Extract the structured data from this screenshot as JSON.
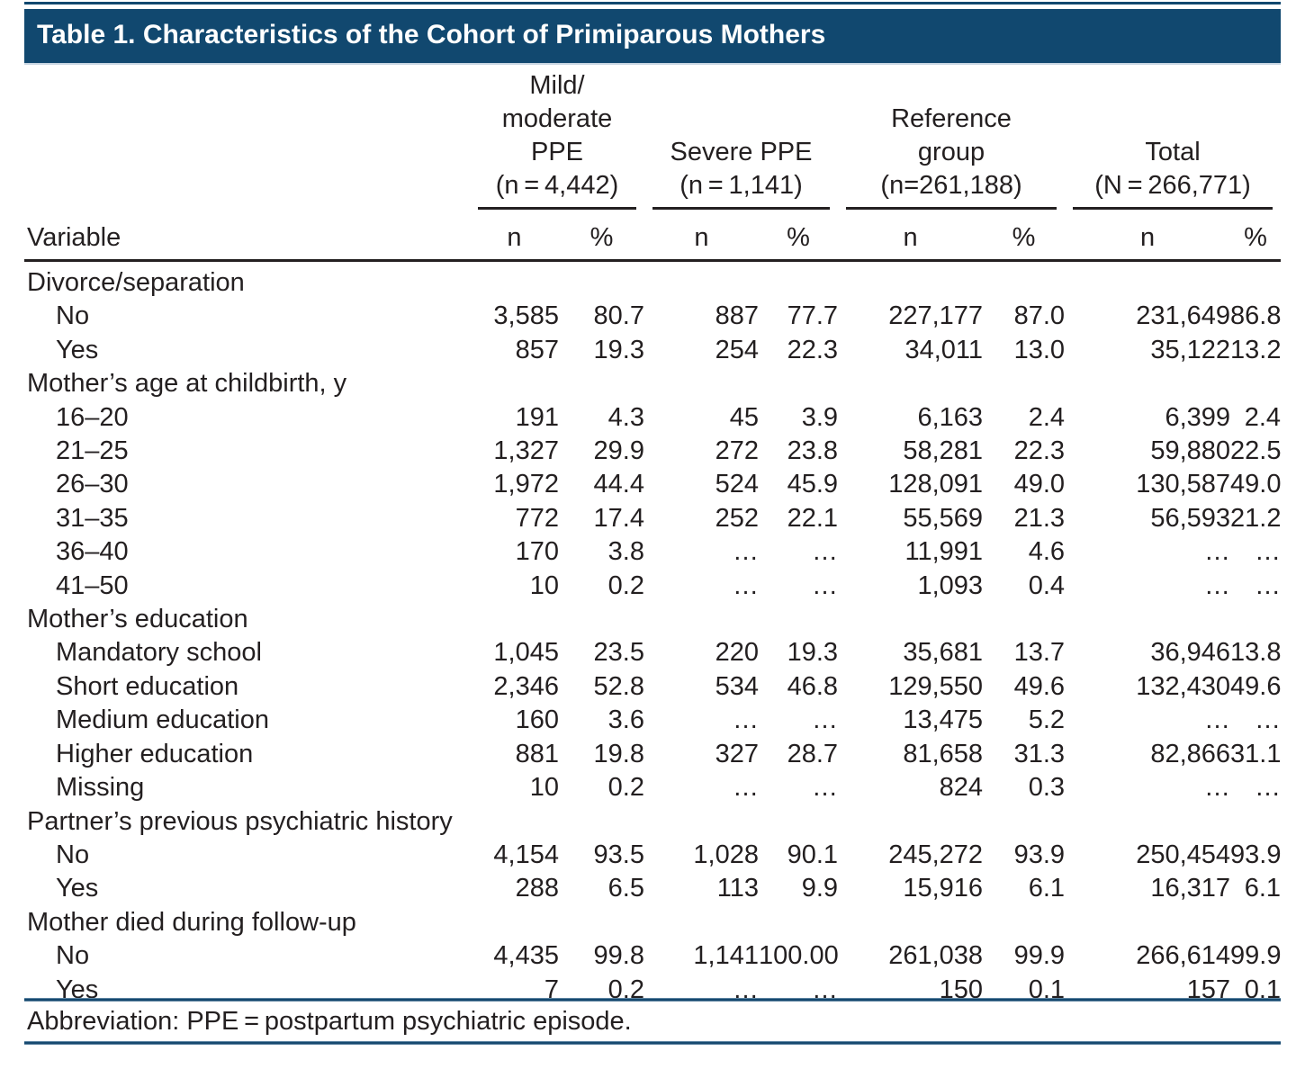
{
  "title": "Table 1. Characteristics of the Cohort of Primiparous Mothers",
  "table": {
    "variable_header": "Variable",
    "col_subheaders": [
      "n",
      "%"
    ],
    "groups": [
      {
        "name": "mild-moderate-ppe",
        "lines": [
          "Mild/",
          "moderate",
          "PPE",
          "(n = 4,442)"
        ]
      },
      {
        "name": "severe-ppe",
        "lines": [
          "Severe PPE",
          "(n = 1,141)"
        ]
      },
      {
        "name": "reference-group",
        "lines": [
          "Reference",
          "group",
          "(n=261,188)"
        ]
      },
      {
        "name": "total",
        "lines": [
          "Total",
          "(N = 266,771)"
        ]
      }
    ],
    "rows": [
      {
        "type": "section",
        "label": "Divorce/separation",
        "cells": []
      },
      {
        "type": "data",
        "label": "No",
        "cells": [
          "3,585",
          "80.7",
          "887",
          "77.7",
          "227,177",
          "87.0",
          "231,649",
          "86.8"
        ]
      },
      {
        "type": "data",
        "label": "Yes",
        "cells": [
          "857",
          "19.3",
          "254",
          "22.3",
          "34,011",
          "13.0",
          "35,122",
          "13.2"
        ]
      },
      {
        "type": "section",
        "label": "Mother’s age at childbirth, y",
        "cells": []
      },
      {
        "type": "data",
        "label": "16–20",
        "cells": [
          "191",
          "4.3",
          "45",
          "3.9",
          "6,163",
          "2.4",
          "6,399",
          "2.4"
        ]
      },
      {
        "type": "data",
        "label": "21–25",
        "cells": [
          "1,327",
          "29.9",
          "272",
          "23.8",
          "58,281",
          "22.3",
          "59,880",
          "22.5"
        ]
      },
      {
        "type": "data",
        "label": "26–30",
        "cells": [
          "1,972",
          "44.4",
          "524",
          "45.9",
          "128,091",
          "49.0",
          "130,587",
          "49.0"
        ]
      },
      {
        "type": "data",
        "label": "31–35",
        "cells": [
          "772",
          "17.4",
          "252",
          "22.1",
          "55,569",
          "21.3",
          "56,593",
          "21.2"
        ]
      },
      {
        "type": "data",
        "label": "36–40",
        "cells": [
          "170",
          "3.8",
          "…",
          "…",
          "11,991",
          "4.6",
          "…",
          "…"
        ]
      },
      {
        "type": "data",
        "label": "41–50",
        "cells": [
          "10",
          "0.2",
          "…",
          "…",
          "1,093",
          "0.4",
          "…",
          "…"
        ]
      },
      {
        "type": "section",
        "label": "Mother’s education",
        "cells": []
      },
      {
        "type": "data",
        "label": "Mandatory school",
        "cells": [
          "1,045",
          "23.5",
          "220",
          "19.3",
          "35,681",
          "13.7",
          "36,946",
          "13.8"
        ]
      },
      {
        "type": "data",
        "label": "Short education",
        "cells": [
          "2,346",
          "52.8",
          "534",
          "46.8",
          "129,550",
          "49.6",
          "132,430",
          "49.6"
        ]
      },
      {
        "type": "data",
        "label": "Medium education",
        "cells": [
          "160",
          "3.6",
          "…",
          "…",
          "13,475",
          "5.2",
          "…",
          "…"
        ]
      },
      {
        "type": "data",
        "label": "Higher education",
        "cells": [
          "881",
          "19.8",
          "327",
          "28.7",
          "81,658",
          "31.3",
          "82,866",
          "31.1"
        ]
      },
      {
        "type": "data",
        "label": "Missing",
        "cells": [
          "10",
          "0.2",
          "…",
          "…",
          "824",
          "0.3",
          "…",
          "…"
        ]
      },
      {
        "type": "section",
        "label": "Partner’s previous psychiatric history",
        "cells": []
      },
      {
        "type": "data",
        "label": "No",
        "cells": [
          "4,154",
          "93.5",
          "1,028",
          "90.1",
          "245,272",
          "93.9",
          "250,454",
          "93.9"
        ]
      },
      {
        "type": "data",
        "label": "Yes",
        "cells": [
          "288",
          "6.5",
          "113",
          "9.9",
          "15,916",
          "6.1",
          "16,317",
          "6.1"
        ]
      },
      {
        "type": "section",
        "label": "Mother died during follow-up",
        "cells": []
      },
      {
        "type": "data",
        "label": "No",
        "cells": [
          "4,435",
          "99.8",
          "1,141",
          "100.00",
          "261,038",
          "99.9",
          "266,614",
          "99.9"
        ]
      },
      {
        "type": "data",
        "label": "Yes",
        "cells": [
          "7",
          "0.2",
          "…",
          "…",
          "150",
          "0.1",
          "157",
          "0.1"
        ]
      }
    ]
  },
  "footnote": "Abbreviation: PPE = postpartum psychiatric episode.",
  "colors": {
    "header_bar": "#11486f",
    "rule_blue": "#16496f",
    "rule_black": "#242021",
    "text": "#231f20"
  }
}
